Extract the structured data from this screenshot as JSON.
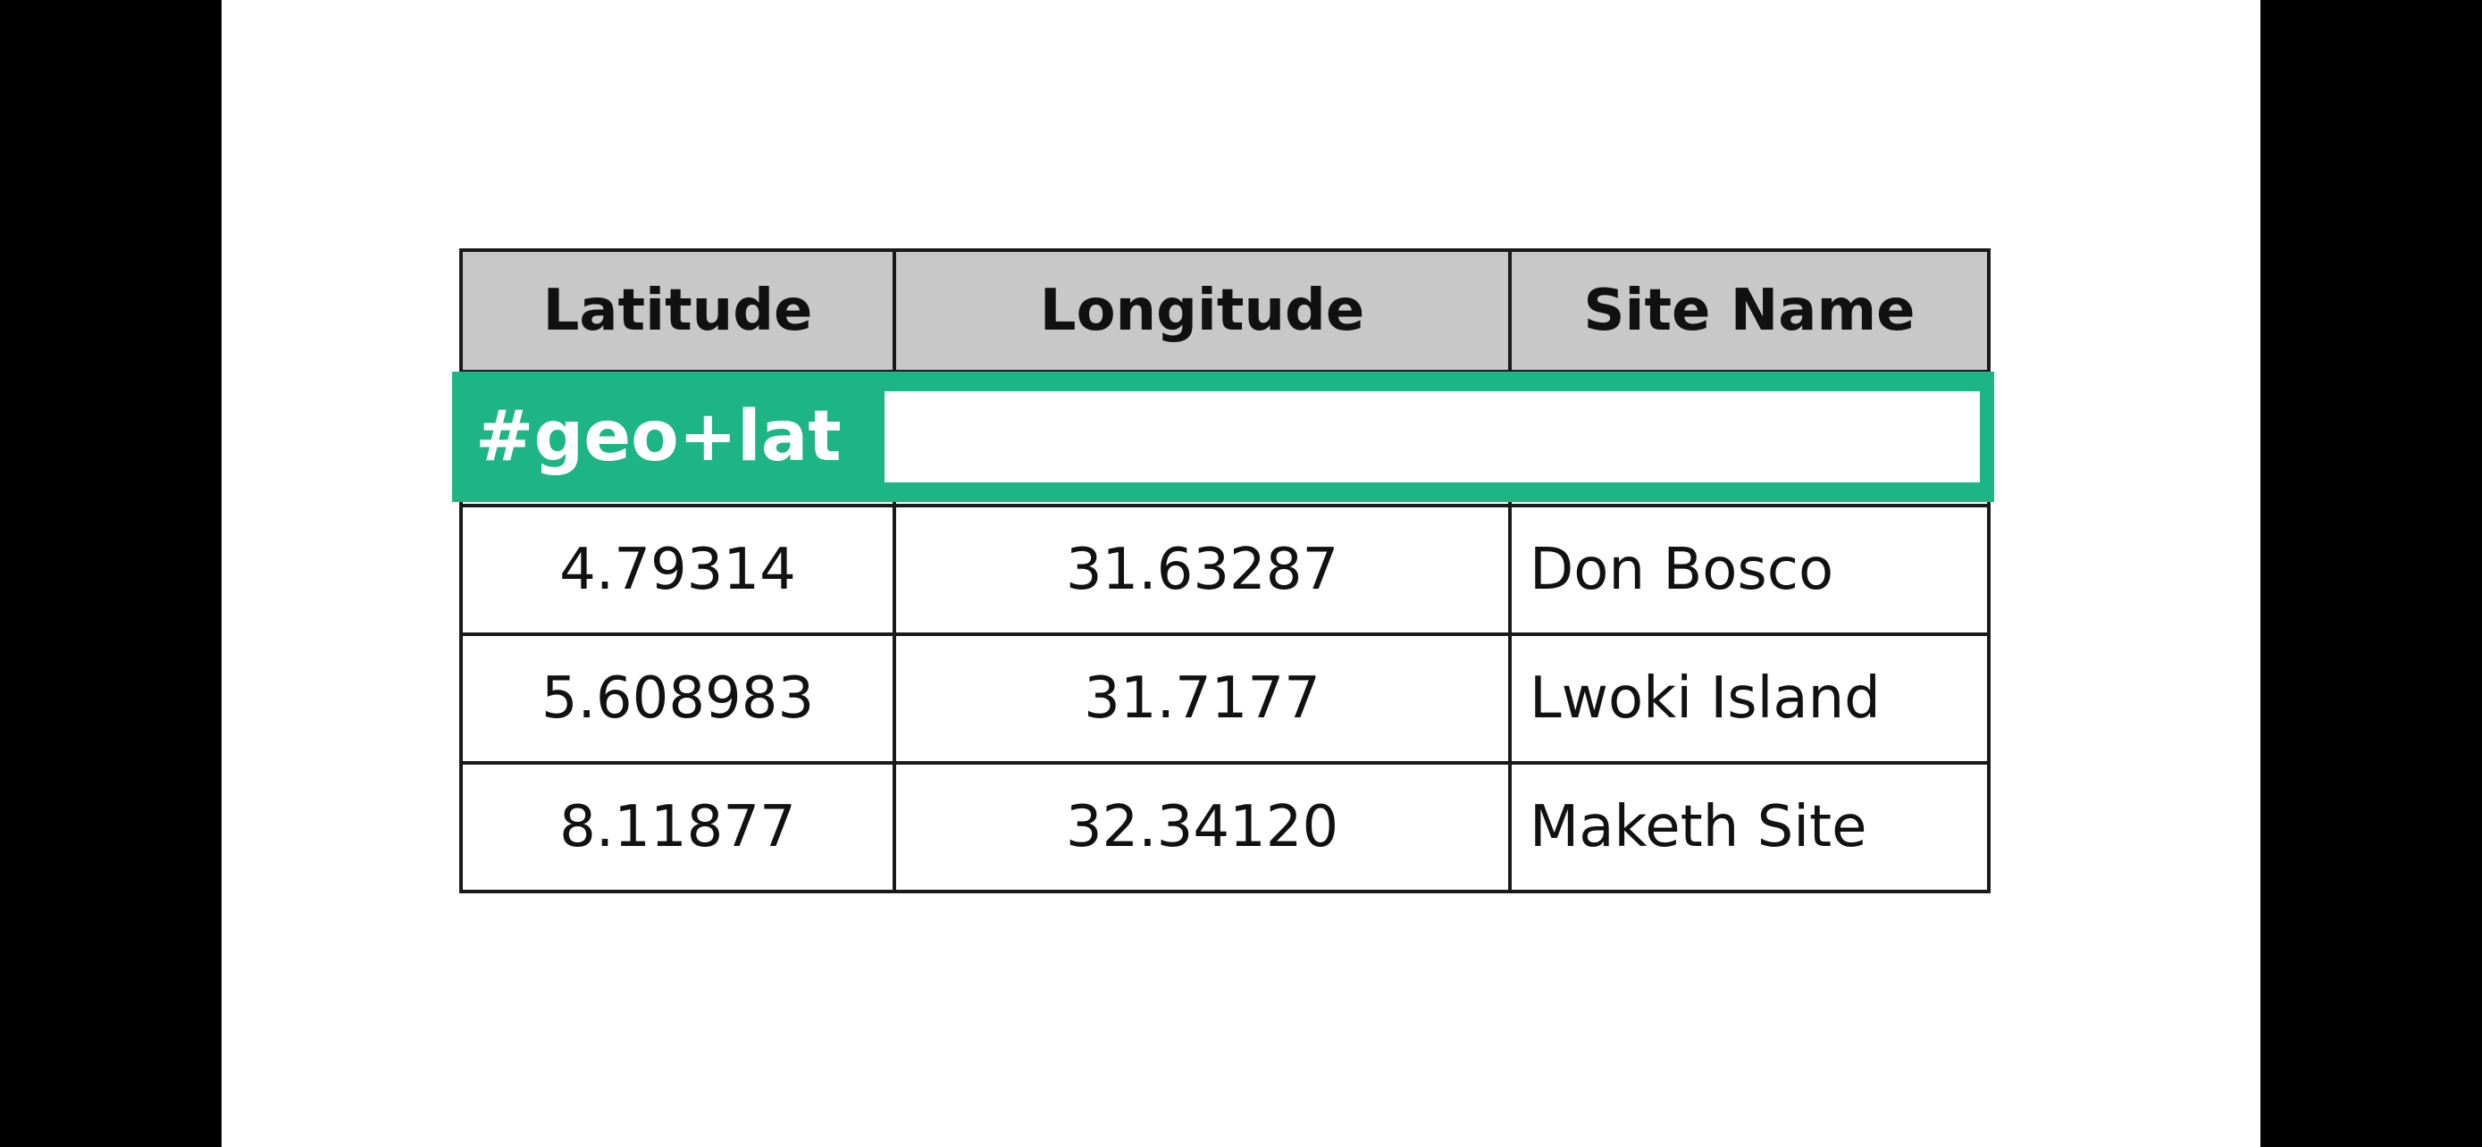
{
  "table": {
    "headers": [
      "Latitude",
      "Longitude",
      "Site Name"
    ],
    "rows": [
      [
        "4.79314",
        "31.63287",
        "Don Bosco"
      ],
      [
        "5.608983",
        "31.7177",
        "Lwoki Island"
      ],
      [
        "8.11877",
        "32.34120",
        "Maketh Site"
      ]
    ]
  },
  "hashtag": {
    "label": "#geo+lat",
    "color": "#1db584"
  },
  "colors": {
    "header_background": "#c8c8c8",
    "border": "#1a1a1a",
    "canvas": "#ffffff",
    "letterbox": "#000000"
  }
}
